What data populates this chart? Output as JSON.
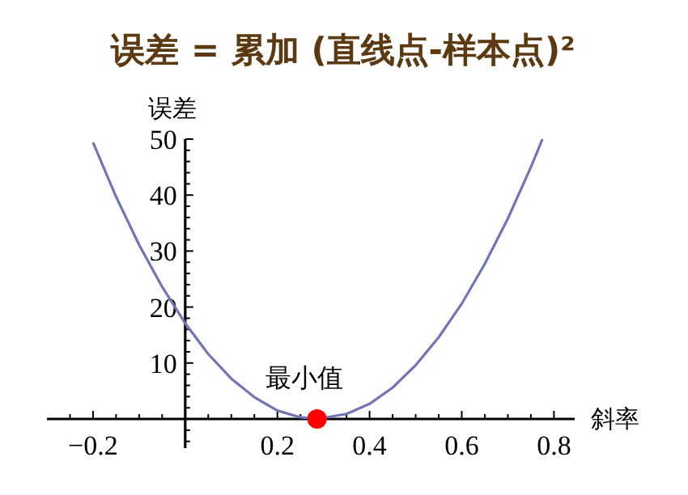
{
  "chart_data": {
    "type": "line",
    "title": "误差 = 累加 (直线点-样本点)²",
    "xlabel": "斜率",
    "ylabel": "误差",
    "x": [
      -0.2,
      -0.15,
      -0.1,
      -0.05,
      0,
      0.05,
      0.1,
      0.15,
      0.2,
      0.25,
      0.286,
      0.35,
      0.4,
      0.45,
      0.5,
      0.55,
      0.6,
      0.65,
      0.7,
      0.75,
      0.775
    ],
    "series": [
      {
        "color": "#7474b4",
        "values": [
          49.4,
          39.7,
          31.1,
          23.6,
          17.1,
          11.6,
          7.2,
          3.9,
          1.5,
          0.3,
          0,
          0.9,
          2.7,
          5.6,
          9.6,
          14.6,
          20.6,
          27.7,
          35.8,
          45.0,
          50.0
        ]
      },
      {
        "type": "scatter",
        "color": "#ff0000",
        "x": [
          0.286
        ],
        "values": [
          0
        ],
        "marker": "circle"
      }
    ],
    "annotations": [
      {
        "text": "最小值",
        "x": 0.286,
        "y": 0
      }
    ],
    "xlim": [
      -0.3,
      0.845
    ],
    "ylim": [
      -5.2,
      50
    ],
    "xticks": [
      {
        "value": -0.25,
        "label": null
      },
      -0.2,
      {
        "value": -0.15,
        "label": null
      },
      {
        "value": -0.1,
        "label": null
      },
      {
        "value": -0.05,
        "label": null
      },
      {
        "value": 0.05,
        "label": null
      },
      {
        "value": 0.1,
        "label": null
      },
      {
        "value": 0.15,
        "label": null
      },
      0.2,
      {
        "value": 0.25,
        "label": null
      },
      {
        "value": 0.3,
        "label": null
      },
      {
        "value": 0.35,
        "label": null
      },
      0.4,
      {
        "value": 0.45,
        "label": null
      },
      {
        "value": 0.5,
        "label": null
      },
      {
        "value": 0.55,
        "label": null
      },
      0.6,
      {
        "value": 0.65,
        "label": null
      },
      {
        "value": 0.7,
        "label": null
      },
      {
        "value": 0.75,
        "label": null
      },
      0.8
    ],
    "yticks": [
      {
        "value": -4,
        "label": null
      },
      {
        "value": -2,
        "label": null
      },
      {
        "value": 2,
        "label": null
      },
      {
        "value": 4,
        "label": null
      },
      {
        "value": 6,
        "label": null
      },
      {
        "value": 8,
        "label": null
      },
      10,
      {
        "value": 12,
        "label": null
      },
      {
        "value": 14,
        "label": null
      },
      {
        "value": 16,
        "label": null
      },
      {
        "value": 18,
        "label": null
      },
      20,
      {
        "value": 22,
        "label": null
      },
      {
        "value": 24,
        "label": null
      },
      {
        "value": 26,
        "label": null
      },
      {
        "value": 28,
        "label": null
      },
      30,
      {
        "value": 32,
        "label": null
      },
      {
        "value": 34,
        "label": null
      },
      {
        "value": 36,
        "label": null
      },
      {
        "value": 38,
        "label": null
      },
      40,
      {
        "value": 42,
        "label": null
      },
      {
        "value": 44,
        "label": null
      },
      {
        "value": 46,
        "label": null
      },
      {
        "value": 48,
        "label": null
      },
      50
    ],
    "grid": false
  }
}
